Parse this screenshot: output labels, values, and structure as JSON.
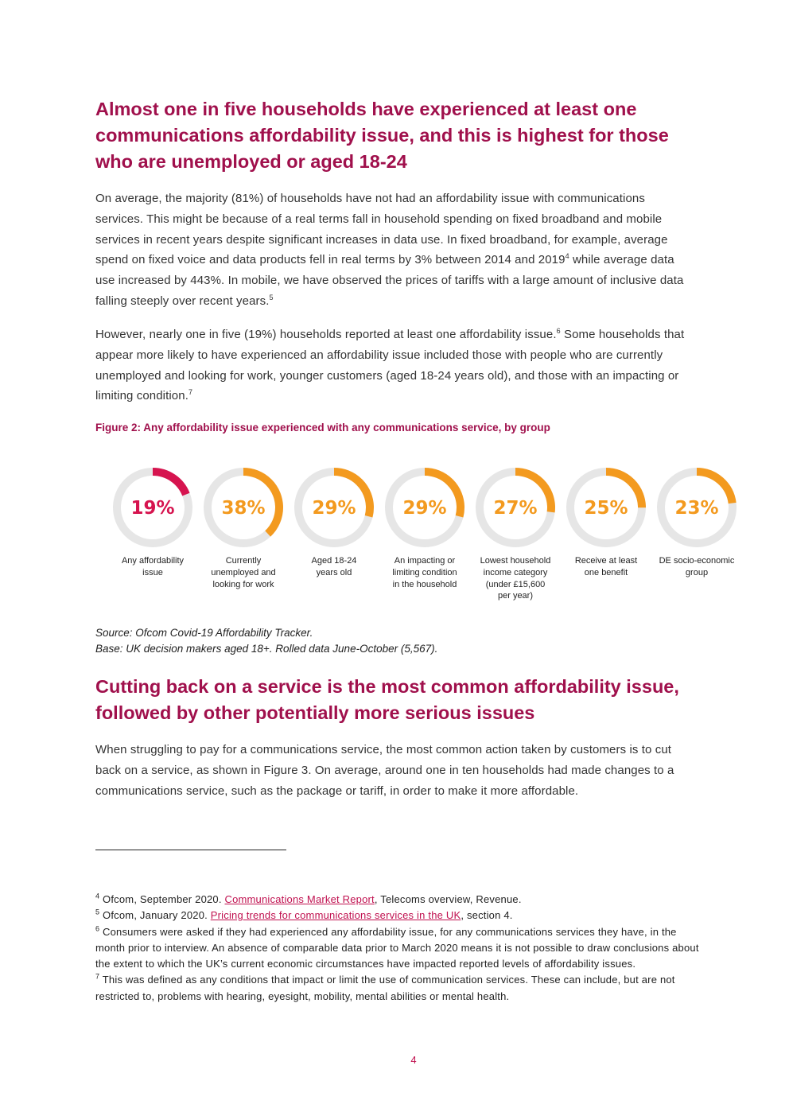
{
  "section1": {
    "heading": "Almost one in five households have experienced at least one communications affordability issue, and this is highest for those who are unemployed or aged 18-24",
    "para1": {
      "text_a": "On average, the majority (81%) of households have not had an affordability issue with communications services. This might be because of a real terms fall in household spending on fixed broadband and mobile services in recent years despite significant increases in data use. In fixed broadband, for example, average spend on fixed voice and data products fell in real terms by 3% between 2014 and 2019",
      "sup_a": "4",
      "text_b": " while average data use increased by 443%. In mobile, we have observed the prices of tariffs with a large amount of inclusive data falling steeply over recent years.",
      "sup_b": "5"
    },
    "para2": {
      "text_a": "However, nearly one in five (19%) households reported at least one affordability issue.",
      "sup_a": "6",
      "text_b": " Some households that appear more likely to have experienced an affordability issue included those with people who are currently unemployed and looking for work, younger customers (aged 18-24 years old), and those with an impacting or limiting condition.",
      "sup_b": "7"
    }
  },
  "figure": {
    "caption_prefix": "Figure 2",
    "caption": ": Any affordability issue experienced with any communications service, by group",
    "colors": {
      "highlight": "#d6144f",
      "accent": "#f39a1f",
      "track": "#e6e6e6"
    },
    "source": "Source: Ofcom Covid-19 Affordability Tracker.",
    "base": "Base: UK decision makers aged 18+. Rolled data June-October (5,567)."
  },
  "chart_data": {
    "type": "donut",
    "unit": "%",
    "categories": [
      "Any affordability issue",
      "Currently unemployed and looking for work",
      "Aged 18-24 years old",
      "An impacting or limiting condition in the household",
      "Lowest household income category (under £15,600 per year)",
      "Receive at least one benefit",
      "DE socio-economic group"
    ],
    "labels": [
      [
        "Any affordability",
        "issue"
      ],
      [
        "Currently",
        "unemployed and",
        "looking for work"
      ],
      [
        "Aged 18-24",
        "years old"
      ],
      [
        "An impacting or",
        "limiting condition",
        "in the household"
      ],
      [
        "Lowest household",
        "income category",
        "(under £15,600",
        "per year)"
      ],
      [
        "Receive at least",
        "one benefit"
      ],
      [
        "DE socio-economic",
        "group"
      ]
    ],
    "values": [
      19,
      38,
      29,
      29,
      27,
      25,
      23
    ],
    "value_labels": [
      "19%",
      "38%",
      "29%",
      "29%",
      "27%",
      "25%",
      "23%"
    ]
  },
  "section2": {
    "heading": "Cutting back on a service is the most common affordability issue, followed by other potentially more serious issues",
    "para1": "When struggling to pay for a communications service, the most common action taken by customers is to cut back on a service, as shown in Figure 3. On average, around one in ten households had made changes to a communications service, such as the package or tariff, in order to make it more affordable."
  },
  "footnotes": [
    {
      "num": "4",
      "pre": " Ofcom, September 2020. ",
      "link": "Communications Market Report",
      "post": ", Telecoms overview, Revenue."
    },
    {
      "num": "5",
      "pre": " Ofcom, January 2020. ",
      "link": "Pricing trends for communications services in the UK",
      "post": ", section 4."
    },
    {
      "num": "6",
      "pre": " Consumers were asked if they had experienced any affordability issue, for any communications services they have, in the month prior to interview. An absence of comparable data prior to March 2020 means it is not possible to draw conclusions about the extent to which the UK’s current economic circumstances have impacted reported levels of affordability issues.",
      "link": "",
      "post": ""
    },
    {
      "num": "7",
      "pre": " This was defined as any conditions that impact or limit the use of communication services. These can include, but are not restricted to, problems with hearing, eyesight, mobility, mental abilities or mental health.",
      "link": "",
      "post": ""
    }
  ],
  "page_number": "4"
}
